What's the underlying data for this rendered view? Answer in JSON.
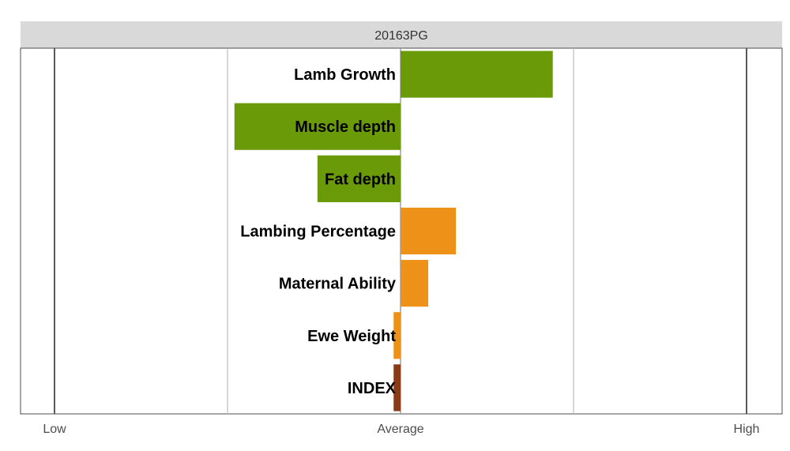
{
  "chart_data": {
    "type": "bar",
    "orientation": "horizontal",
    "title": "20163PG",
    "categories": [
      "Lamb Growth",
      "Muscle depth",
      "Fat depth",
      "Lambing Percentage",
      "Maternal Ability",
      "Ewe Weight",
      "INDEX"
    ],
    "values": [
      0.44,
      -0.48,
      -0.24,
      0.16,
      0.08,
      -0.02,
      -0.02
    ],
    "bar_colors": [
      "#6a9a08",
      "#6a9a08",
      "#6a9a08",
      "#ee9118",
      "#ee9118",
      "#ee9118",
      "#8b3a16"
    ],
    "xlim": [
      -1,
      1
    ],
    "x_tick_labels": [
      "Low",
      "Average",
      "High"
    ],
    "x_tick_values": [
      -1,
      0,
      1
    ],
    "grid": true,
    "colors": {
      "strip_background": "#d9d9d9",
      "gridline": "#bdbdbd",
      "reference_line": "#595959",
      "text": "#000000"
    }
  }
}
